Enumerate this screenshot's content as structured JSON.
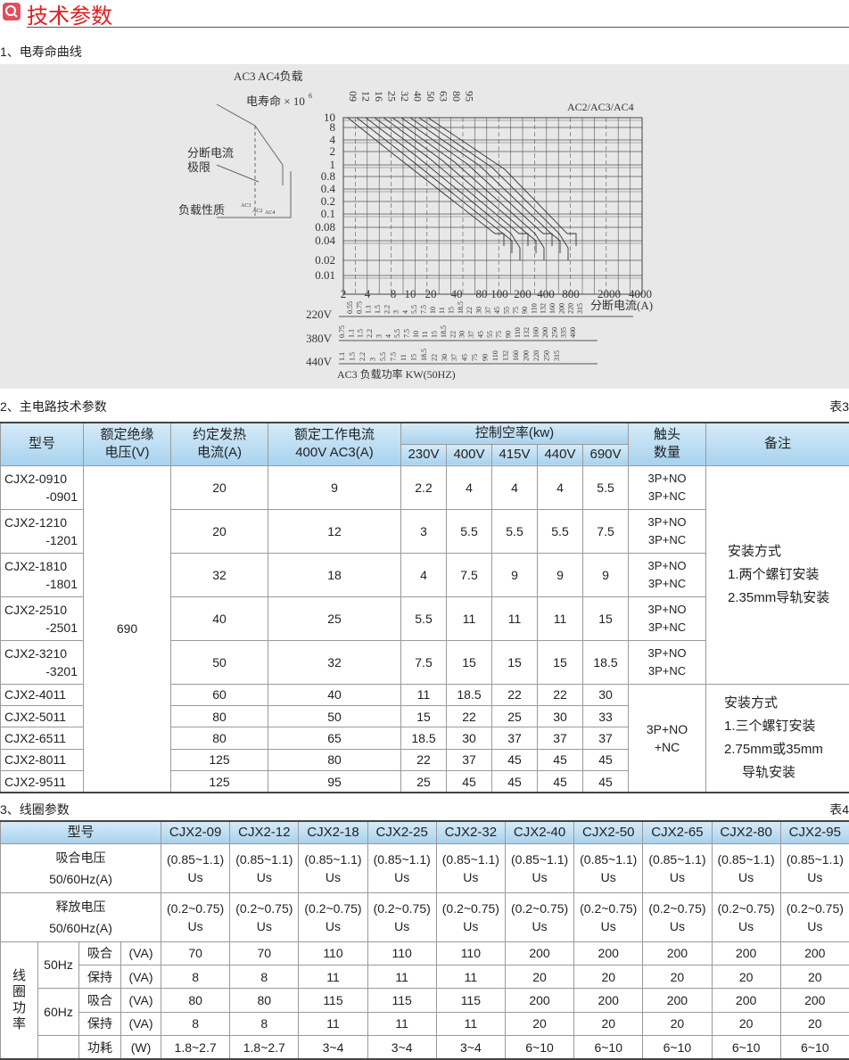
{
  "header": {
    "title": "技术参数",
    "icon": "search-icon",
    "accent": "#e02020"
  },
  "section1": {
    "title": "1、电寿命曲线"
  },
  "chart": {
    "load_title": "AC3 AC4负载",
    "life_label": "电寿命 × 10",
    "life_exp": "6",
    "category": "AC2/AC3/AC4",
    "models": [
      "09",
      "12",
      "16",
      "25",
      "32",
      "40",
      "50",
      "63",
      "80",
      "95"
    ],
    "y_ticks": [
      "10",
      "8",
      "4",
      "2",
      "1",
      "0.8",
      "0.4",
      "0.2",
      "0.1",
      "0.08",
      "0.04",
      "0.02",
      "0.01"
    ],
    "x_ticks": [
      "2",
      "4",
      "8",
      "10",
      "20",
      "40",
      "80",
      "100",
      "200",
      "400",
      "800",
      "2000",
      "4000"
    ],
    "x_label": "分断电流(A)",
    "legend_break": "分断电流",
    "legend_limit": "极限",
    "legend_load": "负载性质",
    "legend_types": [
      "AC3",
      "AC2",
      "AC4"
    ],
    "rows": [
      {
        "voltage": "220V",
        "values": [
          "0.55",
          "0.75",
          "1.1",
          "1.5",
          "2.2",
          "3",
          "4",
          "5.5",
          "7.5",
          "10",
          "11",
          "15",
          "18.5",
          "22",
          "30",
          "37",
          "45",
          "55",
          "75",
          "90",
          "110",
          "132",
          "160",
          "200",
          "220",
          "315"
        ]
      },
      {
        "voltage": "380V",
        "values": [
          "0.75",
          "1.1",
          "1.5",
          "2.2",
          "3",
          "4",
          "5.5",
          "7.5",
          "10",
          "11",
          "15",
          "18.5",
          "22",
          "30",
          "37",
          "45",
          "55",
          "75",
          "90",
          "110",
          "132",
          "160",
          "200",
          "250",
          "335",
          "400"
        ]
      },
      {
        "voltage": "440V",
        "values": [
          "1.1",
          "1.5",
          "2.2",
          "3",
          "5.5",
          "7.5",
          "11",
          "15",
          "18.5",
          "22",
          "30",
          "37",
          "45",
          "75",
          "90",
          "110",
          "132",
          "160",
          "200",
          "220",
          "250",
          "315"
        ]
      }
    ],
    "footer": "AC3 负载功率  KW(50HZ)"
  },
  "section2": {
    "title": "2、主电路技术参数",
    "table_no": "表3"
  },
  "table3": {
    "headers": {
      "model": "型号",
      "insul": [
        "额定绝缘",
        "电压(V)"
      ],
      "heat": [
        "约定发热",
        "电流(A)"
      ],
      "work": [
        "额定工作电流",
        "400V AC3(A)"
      ],
      "power": "控制空率(kw)",
      "volts": [
        "230V",
        "400V",
        "415V",
        "440V",
        "690V"
      ],
      "contacts": [
        "触头",
        "数量"
      ],
      "notes": "备注"
    },
    "insulation": "690",
    "rows": [
      {
        "model": [
          "CJX2-0910",
          "-0901"
        ],
        "heat": "20",
        "work": "9",
        "p": [
          "2.2",
          "4",
          "4",
          "4",
          "5.5"
        ],
        "contacts": [
          "3P+NO",
          "3P+NC"
        ]
      },
      {
        "model": [
          "CJX2-1210",
          "-1201"
        ],
        "heat": "20",
        "work": "12",
        "p": [
          "3",
          "5.5",
          "5.5",
          "5.5",
          "7.5"
        ],
        "contacts": [
          "3P+NO",
          "3P+NC"
        ]
      },
      {
        "model": [
          "CJX2-1810",
          "-1801"
        ],
        "heat": "32",
        "work": "18",
        "p": [
          "4",
          "7.5",
          "9",
          "9",
          "9"
        ],
        "contacts": [
          "3P+NO",
          "3P+NC"
        ]
      },
      {
        "model": [
          "CJX2-2510",
          "-2501"
        ],
        "heat": "40",
        "work": "25",
        "p": [
          "5.5",
          "11",
          "11",
          "11",
          "15"
        ],
        "contacts": [
          "3P+NO",
          "3P+NC"
        ]
      },
      {
        "model": [
          "CJX2-3210",
          "-3201"
        ],
        "heat": "50",
        "work": "32",
        "p": [
          "7.5",
          "15",
          "15",
          "15",
          "18.5"
        ],
        "contacts": [
          "3P+NO",
          "3P+NC"
        ]
      },
      {
        "model": [
          "CJX2-4011"
        ],
        "heat": "60",
        "work": "40",
        "p": [
          "11",
          "18.5",
          "22",
          "22",
          "30"
        ]
      },
      {
        "model": [
          "CJX2-5011"
        ],
        "heat": "80",
        "work": "50",
        "p": [
          "15",
          "22",
          "25",
          "30",
          "33"
        ]
      },
      {
        "model": [
          "CJX2-6511"
        ],
        "heat": "80",
        "work": "65",
        "p": [
          "18.5",
          "30",
          "37",
          "37",
          "37"
        ]
      },
      {
        "model": [
          "CJX2-8011"
        ],
        "heat": "125",
        "work": "80",
        "p": [
          "22",
          "37",
          "45",
          "45",
          "45"
        ]
      },
      {
        "model": [
          "CJX2-9511"
        ],
        "heat": "125",
        "work": "95",
        "p": [
          "25",
          "45",
          "45",
          "45",
          "45"
        ]
      }
    ],
    "contacts_large": [
      "3P+NO",
      "+NC"
    ],
    "note1": [
      "安装方式",
      "1.两个螺钉安装",
      "2.35mm导轨安装"
    ],
    "note2": [
      "安装方式",
      "1.三个螺钉安装",
      "2.75mm或35mm",
      "导轨安装"
    ]
  },
  "section3": {
    "title": "3、线圈参数",
    "table_no": "表4"
  },
  "table4": {
    "model_label": "型号",
    "models": [
      "CJX2-09",
      "CJX2-12",
      "CJX2-18",
      "CJX2-25",
      "CJX2-32",
      "CJX2-40",
      "CJX2-50",
      "CJX2-65",
      "CJX2-80",
      "CJX2-95"
    ],
    "pickup": {
      "label": [
        "吸合电压",
        "50/60Hz(A)"
      ],
      "value": [
        "(0.85~1.1)",
        "Us"
      ]
    },
    "release": {
      "label": [
        "释放电压",
        "50/60Hz(A)"
      ],
      "value": [
        "(0.2~0.75)",
        "Us"
      ]
    },
    "power_label": "线圈功率",
    "hz50": "50Hz",
    "hz60": "60Hz",
    "rows": [
      {
        "name": "吸合",
        "unit": "(VA)",
        "v": [
          "70",
          "70",
          "110",
          "110",
          "110",
          "200",
          "200",
          "200",
          "200",
          "200"
        ]
      },
      {
        "name": "保持",
        "unit": "(VA)",
        "v": [
          "8",
          "8",
          "11",
          "11",
          "11",
          "20",
          "20",
          "20",
          "20",
          "20"
        ]
      },
      {
        "name": "吸合",
        "unit": "(VA)",
        "v": [
          "80",
          "80",
          "115",
          "115",
          "115",
          "200",
          "200",
          "200",
          "200",
          "200"
        ]
      },
      {
        "name": "保持",
        "unit": "(VA)",
        "v": [
          "8",
          "8",
          "11",
          "11",
          "11",
          "20",
          "20",
          "20",
          "20",
          "20"
        ]
      },
      {
        "name": "功耗",
        "unit": "(W)",
        "v": [
          "1.8~2.7",
          "1.8~2.7",
          "3~4",
          "3~4",
          "3~4",
          "6~10",
          "6~10",
          "6~10",
          "6~10",
          "6~10"
        ]
      }
    ]
  }
}
